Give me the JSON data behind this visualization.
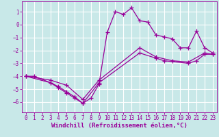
{
  "background_color": "#c8e8e8",
  "grid_color": "#aadddd",
  "line_color": "#990099",
  "marker": "+",
  "marker_size": 4,
  "line_width": 0.9,
  "xlabel": "Windchill (Refroidissement éolien,°C)",
  "xlabel_fontsize": 6.5,
  "tick_fontsize": 5.5,
  "xlim": [
    -0.5,
    23.5
  ],
  "ylim": [
    -6.8,
    1.8
  ],
  "yticks": [
    1,
    0,
    -1,
    -2,
    -3,
    -4,
    -5,
    -6
  ],
  "xticks": [
    0,
    1,
    2,
    3,
    4,
    5,
    6,
    7,
    8,
    9,
    10,
    11,
    12,
    13,
    14,
    15,
    16,
    17,
    18,
    19,
    20,
    21,
    22,
    23
  ],
  "series": [
    {
      "x": [
        0,
        1,
        3,
        4,
        5,
        6,
        7,
        8,
        9,
        10,
        11,
        12,
        13,
        14,
        15,
        16,
        17,
        18,
        19,
        20,
        21,
        22,
        23
      ],
      "y": [
        -4.0,
        -4.0,
        -4.5,
        -4.8,
        -5.2,
        -5.6,
        -6.1,
        -5.7,
        -4.6,
        -0.6,
        1.0,
        0.8,
        1.3,
        0.3,
        0.2,
        -0.8,
        -0.95,
        -1.1,
        -1.8,
        -1.8,
        -0.5,
        -1.8,
        -2.2
      ]
    },
    {
      "x": [
        0,
        3,
        5,
        7,
        9,
        14,
        16,
        18,
        20,
        22,
        23
      ],
      "y": [
        -4.0,
        -4.3,
        -4.7,
        -5.8,
        -4.3,
        -1.8,
        -2.5,
        -2.8,
        -2.9,
        -2.2,
        -2.3
      ]
    },
    {
      "x": [
        0,
        3,
        4,
        5,
        6,
        7,
        9,
        14,
        16,
        17,
        20,
        21,
        22,
        23
      ],
      "y": [
        -4.0,
        -4.5,
        -4.9,
        -5.3,
        -5.7,
        -6.1,
        -4.5,
        -2.2,
        -2.6,
        -2.8,
        -3.0,
        -2.8,
        -2.3,
        -2.3
      ]
    }
  ]
}
